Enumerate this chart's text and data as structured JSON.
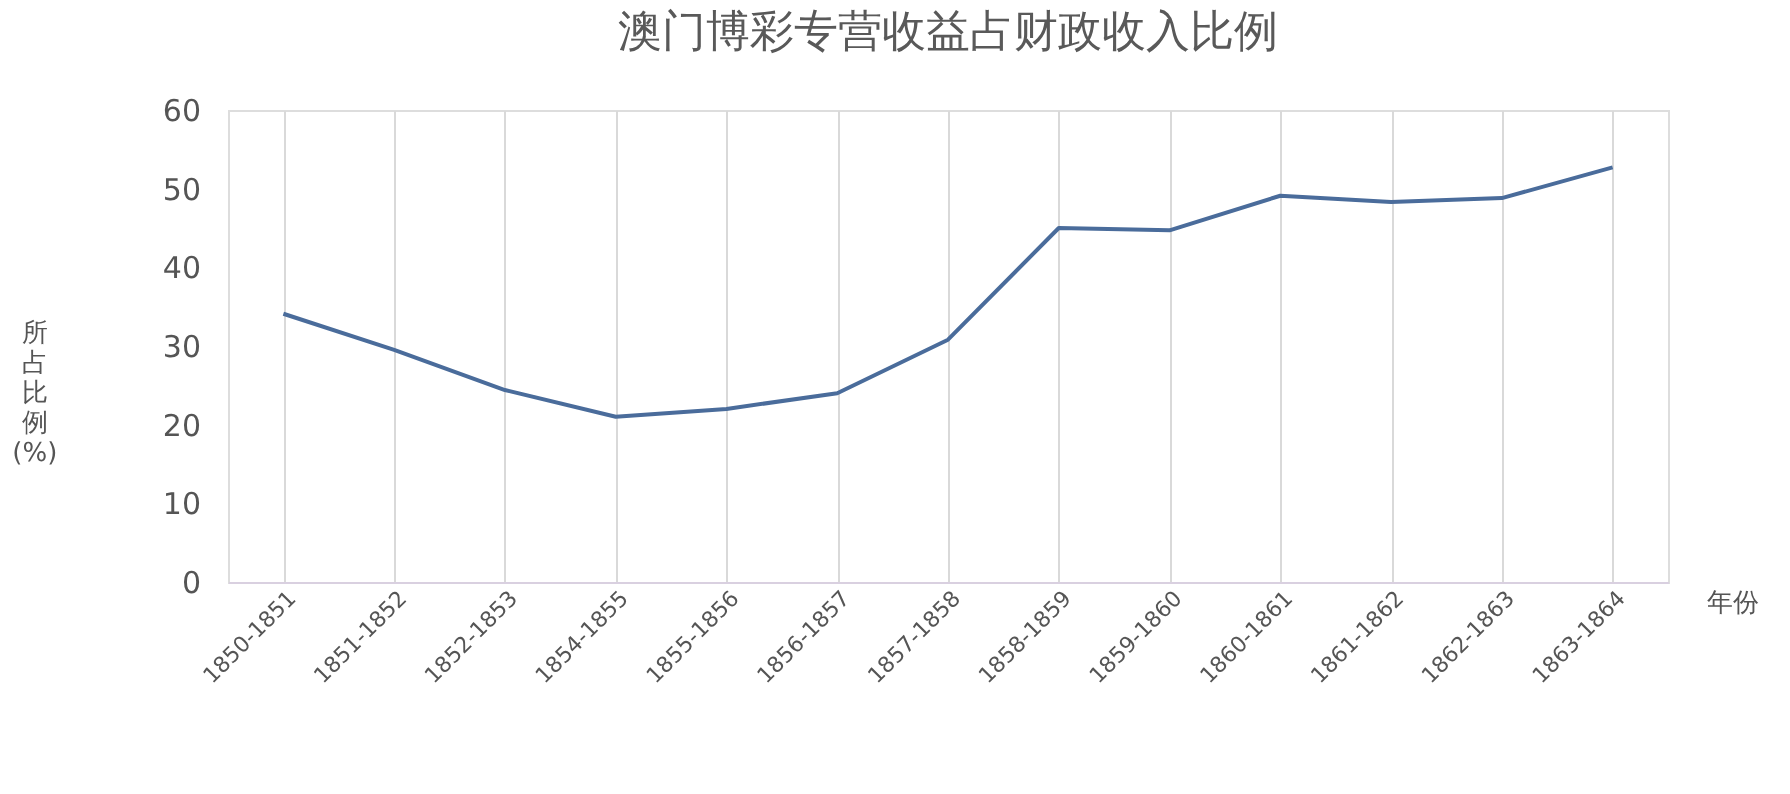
{
  "chart_data": {
    "type": "line",
    "title": "澳门博彩专营收益占财政收入比例",
    "xlabel": "年份",
    "ylabel": "所占比例(%)",
    "categories": [
      "1850-1851",
      "1851-1852",
      "1852-1853",
      "1854-1855",
      "1855-1856",
      "1856-1857",
      "1857-1858",
      "1858-1859",
      "1859-1860",
      "1860-1861",
      "1861-1862",
      "1862-1863",
      "1863-1864"
    ],
    "series": [
      {
        "color": "#4a6c9b",
        "values": [
          34.1,
          29.5,
          24.4,
          21,
          22,
          24,
          30.8,
          45,
          44.7,
          49.1,
          48.3,
          48.8,
          52.7
        ]
      }
    ],
    "ylim": [
      0,
      60
    ],
    "yticks": [
      0,
      10,
      20,
      30,
      40,
      50,
      60
    ],
    "grid": "x",
    "legend": false,
    "marker": "none",
    "line_style": "solid"
  }
}
